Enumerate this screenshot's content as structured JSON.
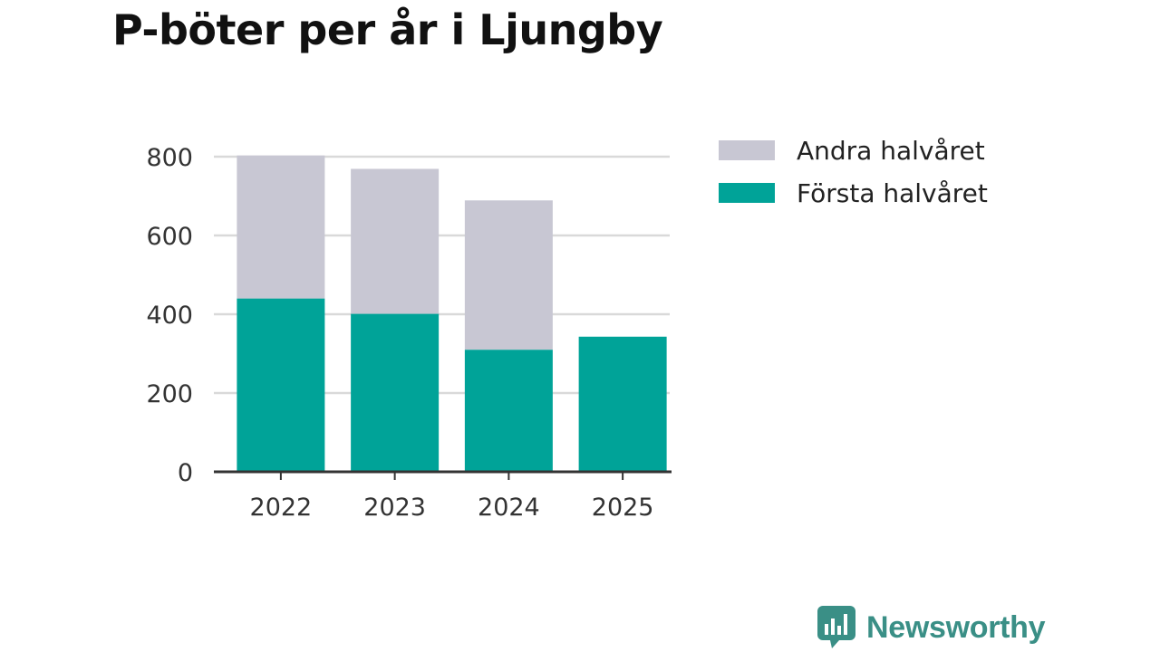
{
  "colors": {
    "first_half": "#00a398",
    "second_half": "#c8c7d3",
    "grid": "#d9d9d9",
    "axis": "#333333",
    "brand": "#3a8f86"
  },
  "brand": {
    "name": "Newsworthy",
    "icon": "newsworthy-logo-icon"
  },
  "chart_data": {
    "type": "bar",
    "stacked": true,
    "title": "P-böter per år i Ljungby",
    "categories": [
      "2022",
      "2023",
      "2024",
      "2025"
    ],
    "series": [
      {
        "name": "Första halvåret",
        "values": [
          440,
          401,
          310,
          343
        ]
      },
      {
        "name": "Andra halvåret",
        "values": [
          363,
          368,
          379,
          0
        ]
      }
    ],
    "legend_order": [
      "Andra halvåret",
      "Första halvåret"
    ],
    "ylim": [
      0,
      800
    ],
    "yticks": [
      0,
      200,
      400,
      600,
      800
    ],
    "xlabel": "",
    "ylabel": "",
    "grid": true,
    "legend_position": "right"
  }
}
